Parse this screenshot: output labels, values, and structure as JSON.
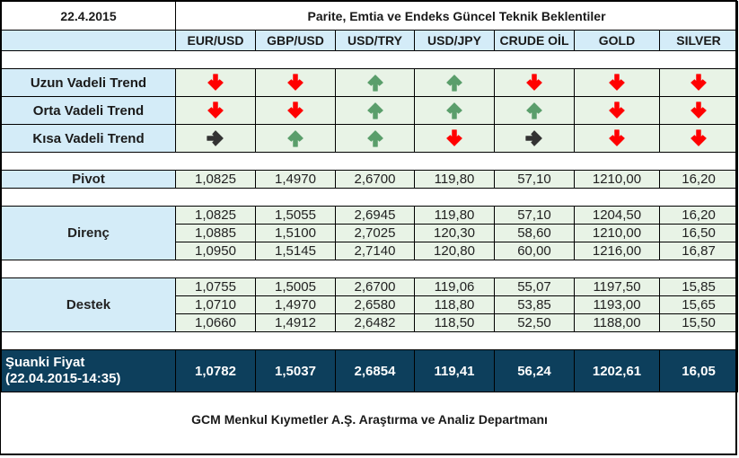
{
  "header": {
    "date": "22.4.2015",
    "title": "Parite, Emtia ve Endeks Güncel Teknik Beklentiler"
  },
  "columns": [
    "EUR/USD",
    "GBP/USD",
    "USD/TRY",
    "USD/JPY",
    "CRUDE OİL",
    "GOLD",
    "SILVER"
  ],
  "colors": {
    "up": "#5a9e6b",
    "down": "#ff0000",
    "neutral": "#333333",
    "header_bg": "#d4ecf8",
    "cell_bg": "#e8f3e6",
    "current_bg": "#0d3f5c"
  },
  "trends": [
    {
      "label": "Uzun Vadeli Trend",
      "values": [
        "down",
        "down",
        "up",
        "up",
        "down",
        "down",
        "down"
      ]
    },
    {
      "label": "Orta Vadeli Trend",
      "values": [
        "down",
        "down",
        "up",
        "up",
        "up",
        "down",
        "down"
      ]
    },
    {
      "label": "Kısa Vadeli Trend",
      "values": [
        "right",
        "up",
        "up",
        "down",
        "right",
        "down",
        "down"
      ]
    }
  ],
  "pivot": {
    "label": "Pivot",
    "values": [
      "1,0825",
      "1,4970",
      "2,6700",
      "119,80",
      "57,10",
      "1210,00",
      "16,20"
    ]
  },
  "resistance": {
    "label": "Direnç",
    "rows": [
      [
        "1,0825",
        "1,5055",
        "2,6945",
        "119,80",
        "57,10",
        "1204,50",
        "16,20"
      ],
      [
        "1,0885",
        "1,5100",
        "2,7025",
        "120,30",
        "58,60",
        "1210,00",
        "16,50"
      ],
      [
        "1,0950",
        "1,5145",
        "2,7140",
        "120,80",
        "60,00",
        "1216,00",
        "16,87"
      ]
    ]
  },
  "support": {
    "label": "Destek",
    "rows": [
      [
        "1,0755",
        "1,5005",
        "2,6700",
        "119,06",
        "55,07",
        "1197,50",
        "15,85"
      ],
      [
        "1,0710",
        "1,4970",
        "2,6580",
        "118,80",
        "53,85",
        "1193,00",
        "15,65"
      ],
      [
        "1,0660",
        "1,4912",
        "2,6482",
        "118,50",
        "52,50",
        "1188,00",
        "15,50"
      ]
    ]
  },
  "current": {
    "label_line1": "Şuanki Fiyat",
    "label_line2": "(22.04.2015-14:35)",
    "values": [
      "1,0782",
      "1,5037",
      "2,6854",
      "119,41",
      "56,24",
      "1202,61",
      "16,05"
    ]
  },
  "footer": "GCM Menkul Kıymetler A.Ş. Araştırma ve Analiz Departmanı"
}
